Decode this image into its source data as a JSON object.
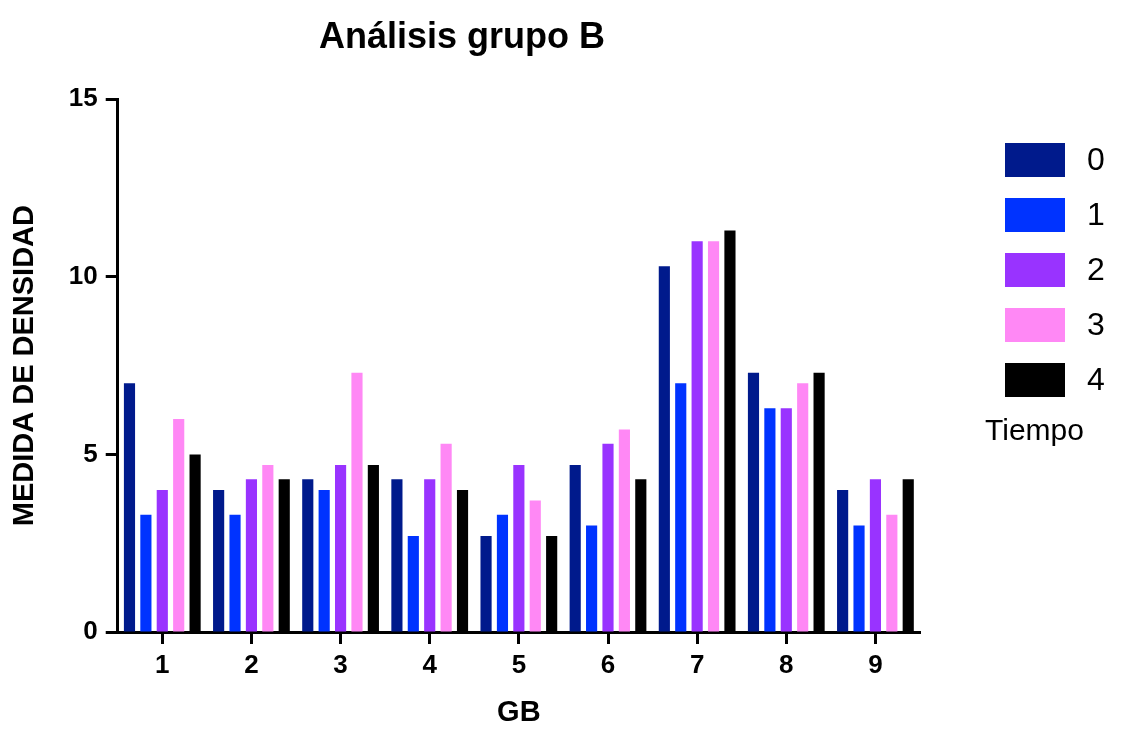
{
  "chart_data": {
    "type": "bar",
    "title": "Análisis grupo B",
    "xlabel": "GB",
    "ylabel": "MEDIDA DE DENSIDAD",
    "legend_title": "Tiempo",
    "categories": [
      "1",
      "2",
      "3",
      "4",
      "5",
      "6",
      "7",
      "8",
      "9"
    ],
    "series": [
      {
        "name": "0",
        "color": "#001a8c",
        "values": [
          7,
          4,
          4.3,
          4.3,
          2.7,
          4.7,
          10.3,
          7.3,
          4
        ]
      },
      {
        "name": "1",
        "color": "#0033ff",
        "values": [
          3.3,
          3.3,
          4,
          2.7,
          3.3,
          3,
          7,
          6.3,
          3
        ]
      },
      {
        "name": "2",
        "color": "#9933ff",
        "values": [
          4,
          4.3,
          4.7,
          4.3,
          4.7,
          5.3,
          11,
          6.3,
          4.3
        ]
      },
      {
        "name": "3",
        "color": "#ff88f5",
        "values": [
          6,
          4.7,
          7.3,
          5.3,
          3.7,
          5.7,
          11,
          7,
          3.3
        ]
      },
      {
        "name": "4",
        "color": "#000000",
        "values": [
          5,
          4.3,
          4.7,
          4,
          2.7,
          4.3,
          11.3,
          7.3,
          4.3
        ]
      }
    ],
    "ylim": [
      0,
      15
    ],
    "yticks": [
      0,
      5,
      10,
      15
    ],
    "grid": false,
    "legend": "right"
  }
}
